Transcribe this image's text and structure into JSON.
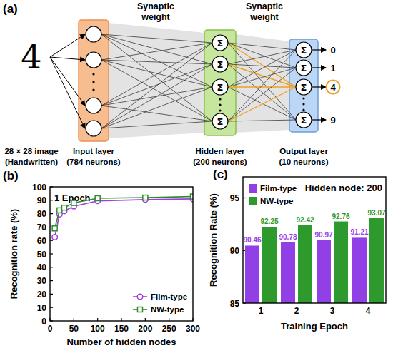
{
  "diagram": {
    "panel": "(a)",
    "digit": "4",
    "image_label": [
      "28 × 28 image",
      "(Handwritten)"
    ],
    "weight_label": [
      "Synaptic",
      "weight"
    ],
    "neuron_symbol": "Σ",
    "layers": [
      {
        "name": "Input layer",
        "neurons": "(784 neurons)"
      },
      {
        "name": "Hidden layer",
        "neurons": "(200 neurons)"
      },
      {
        "name": "Output layer",
        "neurons": "(10 neurons)"
      }
    ],
    "outputs": [
      "0",
      "1",
      "4",
      "9"
    ],
    "highlighted_output": 2
  },
  "chart_data": [
    {
      "type": "line",
      "title": "1 Epoch",
      "annotations": [
        "(b)"
      ],
      "x_label": "Number of hidden nodes",
      "y_label": "Recognition rate (%)",
      "x": [
        10,
        20,
        30,
        50,
        100,
        200,
        300
      ],
      "series": [
        {
          "name": "Film-type",
          "color": "#a23cdc",
          "marker": "circle",
          "values": [
            62.5,
            79.5,
            82,
            85.5,
            89.5,
            90.5,
            91
          ]
        },
        {
          "name": "NW-type",
          "color": "#2e8b2e",
          "marker": "square",
          "values": [
            69,
            82.5,
            84.5,
            88,
            91.5,
            92,
            92.8
          ]
        }
      ],
      "xlim": [
        0,
        300
      ],
      "xticks": [
        0,
        50,
        100,
        150,
        200,
        250,
        300
      ],
      "ylim": [
        0,
        100
      ],
      "yticks": [
        0,
        10,
        20,
        30,
        40,
        50,
        60,
        70,
        80,
        90,
        100
      ],
      "grid": false,
      "legend": "lower right"
    },
    {
      "type": "bar",
      "title": "Hidden node: 200",
      "annotations": [
        "(c)"
      ],
      "x_label": "Training Epoch",
      "y_label": "Recognition Rate (%)",
      "categories": [
        "1",
        "2",
        "3",
        "4"
      ],
      "series": [
        {
          "name": "Film-type",
          "color": "#9140e6",
          "values": [
            90.46,
            90.78,
            90.97,
            91.21
          ]
        },
        {
          "name": "NW-type",
          "color": "#2e9a2e",
          "values": [
            92.25,
            92.42,
            92.76,
            93.07
          ]
        }
      ],
      "ylim": [
        85,
        97
      ],
      "yticks": [
        85,
        90,
        95
      ],
      "data_labels": true,
      "grid": false,
      "legend": "upper left"
    }
  ]
}
